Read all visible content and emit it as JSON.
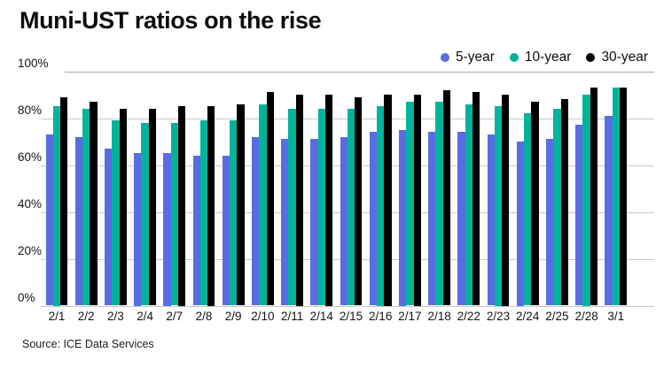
{
  "title": "Muni-UST ratios on the rise",
  "source": "Source: ICE Data Services",
  "legend": [
    {
      "label": "5-year",
      "color": "#5a6ce2"
    },
    {
      "label": "10-year",
      "color": "#00b49b"
    },
    {
      "label": "30-year",
      "color": "#000000"
    }
  ],
  "colors": {
    "five_year": "#5a6ce2",
    "ten_year": "#00b49b",
    "thirty_year": "#000000",
    "gridline": "#c9c9c9",
    "top_gridline": "#a8a8a8",
    "text": "#0d0d0d"
  },
  "chart_data": {
    "type": "bar",
    "title": "Muni-UST ratios on the rise",
    "xlabel": "",
    "ylabel": "",
    "unit": "%",
    "ylim": [
      0,
      100
    ],
    "yticks": [
      100,
      80,
      60,
      40,
      20,
      0
    ],
    "ytick_labels": [
      "100%",
      "80%",
      "60%",
      "40%",
      "20%",
      "0%"
    ],
    "grid": true,
    "legend_position": "top-right",
    "categories": [
      "2/1",
      "2/2",
      "2/3",
      "2/4",
      "2/7",
      "2/8",
      "2/9",
      "2/10",
      "2/11",
      "2/14",
      "2/15",
      "2/16",
      "2/17",
      "2/18",
      "2/22",
      "2/23",
      "2/24",
      "2/25",
      "2/28",
      "3/1"
    ],
    "series": [
      {
        "name": "5-year",
        "color": "#5a6ce2",
        "values": [
          73,
          72,
          67,
          65,
          65,
          64,
          64,
          72,
          71,
          71,
          72,
          74,
          75,
          74,
          74,
          73,
          70,
          71,
          77,
          81
        ]
      },
      {
        "name": "10-year",
        "color": "#00b49b",
        "values": [
          85,
          84,
          79,
          78,
          78,
          79,
          79,
          86,
          84,
          84,
          84,
          85,
          87,
          87,
          86,
          85,
          82,
          84,
          90,
          93
        ]
      },
      {
        "name": "30-year",
        "color": "#000000",
        "values": [
          89,
          87,
          84,
          84,
          85,
          85,
          86,
          91,
          90,
          90,
          89,
          90,
          90,
          92,
          91,
          90,
          87,
          88,
          93,
          93
        ]
      }
    ]
  }
}
